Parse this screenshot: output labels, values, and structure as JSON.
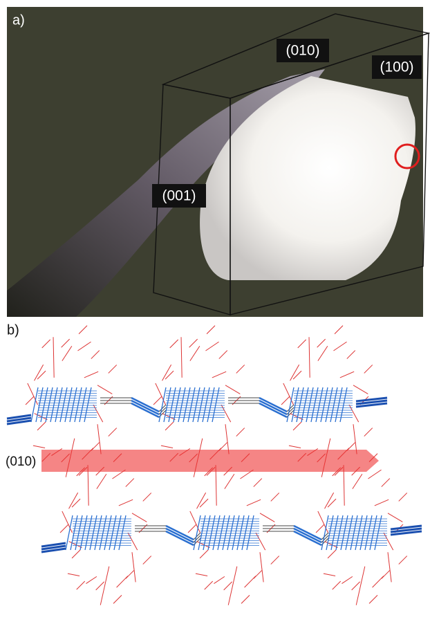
{
  "panel_a": {
    "label": "a)",
    "faces": [
      "(010)",
      "(100)",
      "(001)"
    ]
  },
  "panel_b": {
    "label": "b)",
    "plane": "(010)"
  }
}
